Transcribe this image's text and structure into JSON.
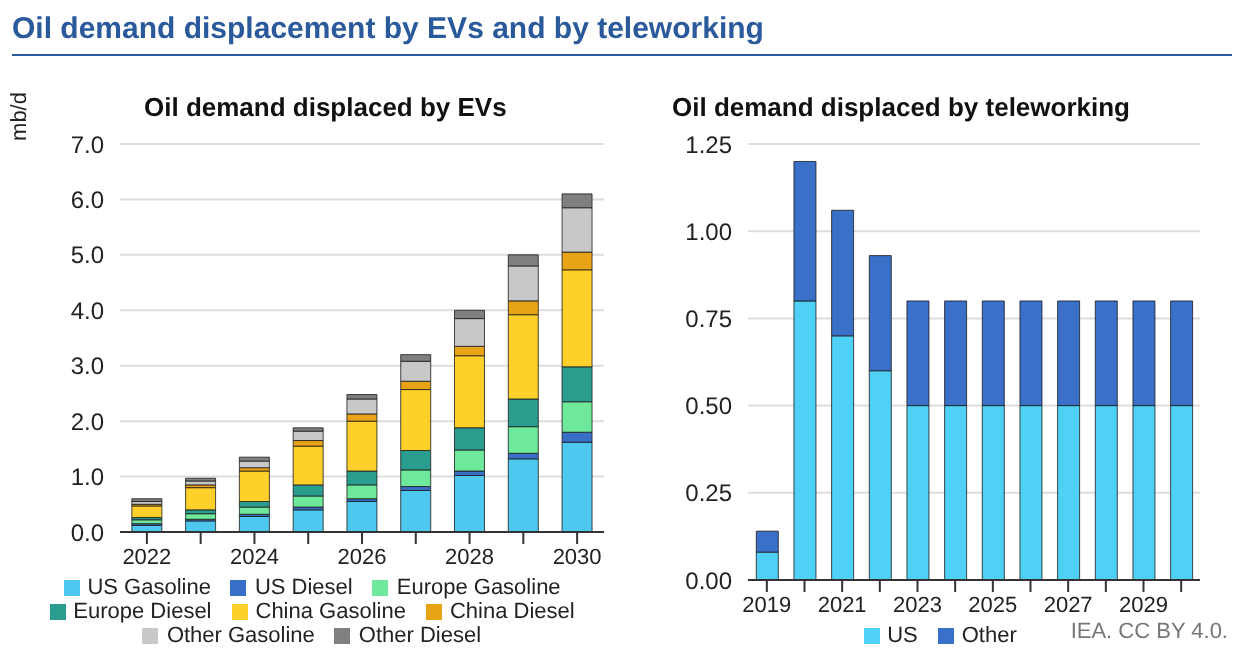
{
  "chart_data": [
    {
      "type": "bar",
      "title": "Oil demand displaced by EVs",
      "ylabel": "mb/d",
      "annotations": [
        "Oil demand displacement by EVs and by teleworking"
      ],
      "stacked": true,
      "grid": "y",
      "legend": "bottom",
      "categories": [
        "2022",
        null,
        "2024",
        null,
        "2026",
        null,
        "2028",
        null,
        "2030"
      ],
      "ylim": [
        0,
        7
      ],
      "yticks": [
        {
          "value": 0,
          "label": "0.0"
        },
        {
          "value": 1,
          "label": "1.0"
        },
        {
          "value": 2,
          "label": "2.0"
        },
        {
          "value": 3,
          "label": "3.0"
        },
        {
          "value": 4,
          "label": "4.0"
        },
        {
          "value": 5,
          "label": "5.0"
        },
        {
          "value": 6,
          "label": "6.0"
        },
        {
          "value": 7,
          "label": "7.0"
        }
      ],
      "series": [
        {
          "name": "US Gasoline",
          "color": "#4fc8f0",
          "values": [
            0.12,
            0.2,
            0.28,
            0.4,
            0.55,
            0.75,
            1.02,
            1.32,
            1.62
          ]
        },
        {
          "name": "US Diesel",
          "color": "#3a6fc8",
          "values": [
            0.03,
            0.03,
            0.04,
            0.05,
            0.05,
            0.07,
            0.08,
            0.1,
            0.18
          ]
        },
        {
          "name": "Europe Gasoline",
          "color": "#6ee89a",
          "values": [
            0.07,
            0.1,
            0.13,
            0.2,
            0.25,
            0.3,
            0.38,
            0.48,
            0.55
          ]
        },
        {
          "name": "Europe Diesel",
          "color": "#2a9d8f",
          "values": [
            0.04,
            0.07,
            0.1,
            0.2,
            0.25,
            0.35,
            0.4,
            0.5,
            0.63
          ]
        },
        {
          "name": "China Gasoline",
          "color": "#ffd02a",
          "values": [
            0.21,
            0.4,
            0.55,
            0.7,
            0.9,
            1.1,
            1.3,
            1.52,
            1.75
          ]
        },
        {
          "name": "China Diesel",
          "color": "#e8a317",
          "values": [
            0.03,
            0.05,
            0.06,
            0.1,
            0.13,
            0.15,
            0.17,
            0.25,
            0.32
          ]
        },
        {
          "name": "Other Gasoline",
          "color": "#c8c8c8",
          "values": [
            0.05,
            0.07,
            0.12,
            0.17,
            0.27,
            0.36,
            0.5,
            0.63,
            0.8
          ]
        },
        {
          "name": "Other Diesel",
          "color": "#808080",
          "values": [
            0.05,
            0.05,
            0.07,
            0.06,
            0.08,
            0.12,
            0.15,
            0.2,
            0.25
          ]
        }
      ]
    },
    {
      "type": "bar",
      "title": "Oil demand displaced by teleworking",
      "annotations": [
        "IEA. CC BY 4.0."
      ],
      "stacked": true,
      "grid": "y",
      "legend": "bottom",
      "categories": [
        "2019",
        null,
        "2021",
        null,
        "2023",
        null,
        "2025",
        null,
        "2027",
        null,
        "2029",
        null
      ],
      "ylim": [
        0,
        1.25
      ],
      "yticks": [
        {
          "value": 0,
          "label": "0.00"
        },
        {
          "value": 0.25,
          "label": "0.25"
        },
        {
          "value": 0.5,
          "label": "0.50"
        },
        {
          "value": 0.75,
          "label": "0.75"
        },
        {
          "value": 1,
          "label": "1.00"
        },
        {
          "value": 1.25,
          "label": "1.25"
        }
      ],
      "series": [
        {
          "name": "US",
          "color": "#4fd0f5",
          "values": [
            0.08,
            0.8,
            0.7,
            0.6,
            0.5,
            0.5,
            0.5,
            0.5,
            0.5,
            0.5,
            0.5,
            0.5
          ]
        },
        {
          "name": "Other",
          "color": "#3a70c8",
          "values": [
            0.06,
            0.4,
            0.36,
            0.33,
            0.3,
            0.3,
            0.3,
            0.3,
            0.3,
            0.3,
            0.3,
            0.3
          ]
        }
      ]
    }
  ]
}
